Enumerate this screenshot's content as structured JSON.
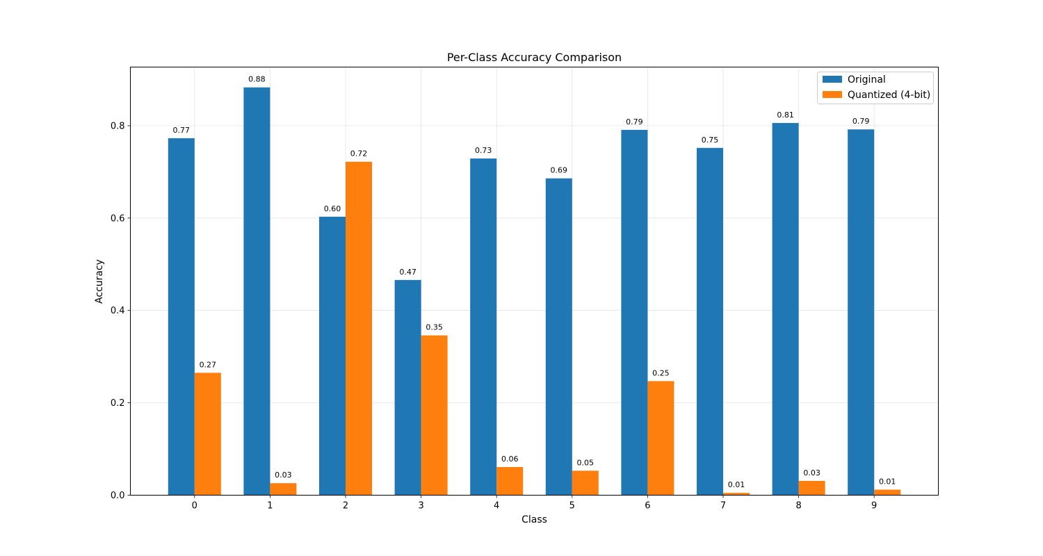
{
  "chart_data": {
    "type": "bar",
    "title": "Per-Class Accuracy Comparison",
    "xlabel": "Class",
    "ylabel": "Accuracy",
    "categories": [
      "0",
      "1",
      "2",
      "3",
      "4",
      "5",
      "6",
      "7",
      "8",
      "9"
    ],
    "series": [
      {
        "name": "Original",
        "color": "#1f77b4",
        "values": [
          0.773,
          0.883,
          0.603,
          0.466,
          0.729,
          0.686,
          0.791,
          0.752,
          0.806,
          0.792
        ],
        "value_labels": [
          "0.77",
          "0.88",
          "0.60",
          "0.47",
          "0.73",
          "0.69",
          "0.79",
          "0.75",
          "0.81",
          "0.79"
        ]
      },
      {
        "name": "Quantized (4-bit)",
        "color": "#ff7f0e",
        "values": [
          0.265,
          0.026,
          0.722,
          0.346,
          0.061,
          0.053,
          0.247,
          0.005,
          0.031,
          0.012
        ],
        "value_labels": [
          "0.27",
          "0.03",
          "0.72",
          "0.35",
          "0.06",
          "0.05",
          "0.25",
          "0.01",
          "0.03",
          "0.01"
        ]
      }
    ],
    "yticks": [
      "0.0",
      "0.2",
      "0.4",
      "0.6",
      "0.8"
    ],
    "ylim": [
      0,
      0.927
    ],
    "grid": true,
    "legend_position": "top-right"
  }
}
